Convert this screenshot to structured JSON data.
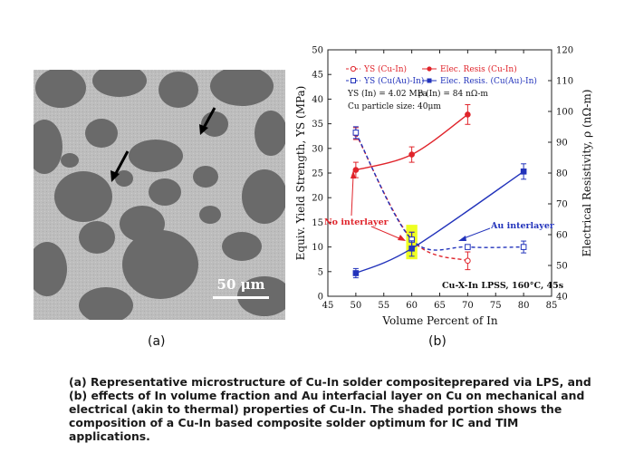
{
  "micrograph": {
    "panel_label": "(a)",
    "scale_bar_text": "50 μm"
  },
  "chart_data": {
    "type": "line",
    "panel_label": "(b)",
    "xlabel": "Volume Percent of In",
    "ylabel": "Equiv. Yield Strength, YS (MPa)",
    "y2label": "Electrical Resistivity, ρ (nΩ-m)",
    "xlim": [
      45,
      85
    ],
    "ylim": [
      0,
      50
    ],
    "y2lim": [
      40,
      120
    ],
    "xticks": [
      45,
      50,
      55,
      60,
      65,
      70,
      75,
      80,
      85
    ],
    "yticks": [
      0,
      5,
      10,
      15,
      20,
      25,
      30,
      35,
      40,
      45,
      50
    ],
    "y2ticks": [
      40,
      50,
      60,
      70,
      80,
      90,
      100,
      110,
      120
    ],
    "series": [
      {
        "name": "YS (Cu-In)",
        "axis": "left",
        "color": "#e0242b",
        "dashed": true,
        "marker": "open-circle",
        "x": [
          50,
          60,
          70
        ],
        "values": [
          33,
          11.5,
          7.2
        ],
        "errors": [
          1.2,
          1.5,
          1.8
        ]
      },
      {
        "name": "YS (Cu(Au)-In)",
        "axis": "left",
        "color": "#2233bb",
        "dashed": true,
        "marker": "open-square",
        "x": [
          50,
          60,
          70,
          80
        ],
        "values": [
          33.2,
          11.5,
          10,
          10
        ],
        "errors": [
          1.2,
          1.5,
          0,
          1.2
        ]
      },
      {
        "name": "Elec. Resis (Cu-In)",
        "axis": "right",
        "color": "#e0242b",
        "dashed": false,
        "marker": "filled-circle",
        "x": [
          50,
          60,
          70
        ],
        "values": [
          81,
          86,
          99
        ],
        "errors": [
          2.5,
          2.5,
          3.2
        ]
      },
      {
        "name": "Elec. Resis. (Cu(Au)-In)",
        "axis": "right",
        "color": "#2233bb",
        "dashed": false,
        "marker": "filled-square",
        "x": [
          50,
          60,
          80
        ],
        "values": [
          47.5,
          55.5,
          80.5
        ],
        "errors": [
          1.5,
          2.5,
          2.5
        ]
      }
    ],
    "highlight": {
      "x_range": [
        59,
        61
      ],
      "y_range": [
        7.5,
        14.5
      ],
      "color": "#eeff22"
    },
    "annotations": {
      "ys_in": "YS (In) = 4.02 MPa",
      "rho_in": "ρ (In) = 84 nΩ-m",
      "particle": "Cu particle size: 40μm",
      "no_interlayer": "No interlayer",
      "au_interlayer": "Au interlayer",
      "process": "Cu-X-In LPSS, 160°C, 45s"
    }
  },
  "caption": "(a) Representative microstructure of Cu-In solder compositeprepared via LPS, and (b) effects of In volume fraction and Au interfacial layer on Cu on mechanical and electrical (akin to thermal) properties of Cu-In. The shaded portion shows the composition of a Cu-In based composite solder optimum for IC and TIM applications."
}
